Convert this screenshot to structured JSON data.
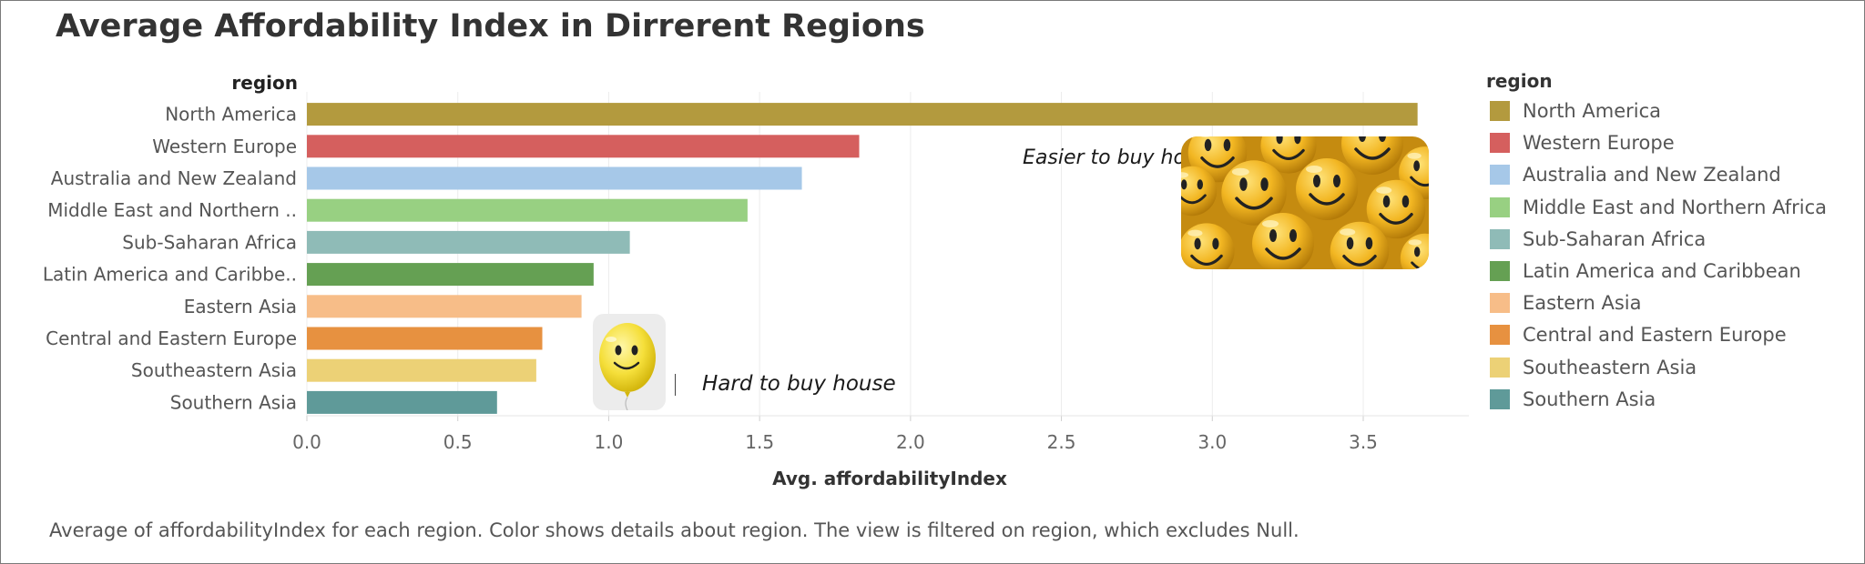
{
  "title": "Average Affordability Index in Dirrerent Regions",
  "caption": "Average of affordabilityIndex for each region.  Color shows details about region. The view is filtered on region, which excludes Null.",
  "annotations": {
    "easier": "Easier to buy house",
    "hard": "Hard to buy house",
    "smileys_icon": "smiley-faces-image",
    "balloon_icon": "smiley-balloon-image"
  },
  "legend": {
    "title": "region",
    "placement": "right",
    "items": [
      {
        "label": "North America",
        "color": "#b39a3e"
      },
      {
        "label": "Western Europe",
        "color": "#d55f5e"
      },
      {
        "label": "Australia and New Zealand",
        "color": "#a6c8e8"
      },
      {
        "label": "Middle East and Northern Africa",
        "color": "#98d082"
      },
      {
        "label": "Sub-Saharan Africa",
        "color": "#8fbbb7"
      },
      {
        "label": "Latin America and Caribbean",
        "color": "#65a053"
      },
      {
        "label": "Eastern Asia",
        "color": "#f7bd88"
      },
      {
        "label": "Central and Eastern Europe",
        "color": "#e79140"
      },
      {
        "label": "Southeastern Asia",
        "color": "#ecd176"
      },
      {
        "label": "Southern Asia",
        "color": "#5f9a99"
      }
    ]
  },
  "chart_data": {
    "type": "bar",
    "orientation": "horizontal",
    "ylabel": "region",
    "xlabel": "Avg. affordabilityIndex",
    "xlim": [
      0,
      3.85
    ],
    "xticks": [
      "0.0",
      "0.5",
      "1.0",
      "1.5",
      "2.0",
      "2.5",
      "3.0",
      "3.5"
    ],
    "grid": true,
    "categories": [
      "North America",
      "Western Europe",
      "Australia and New Zealand",
      "Middle East and Northern ..",
      "Sub-Saharan Africa",
      "Latin America and Caribbe..",
      "Eastern Asia",
      "Central and Eastern Europe",
      "Southeastern Asia",
      "Southern Asia"
    ],
    "values": [
      3.68,
      1.83,
      1.64,
      1.46,
      1.07,
      0.95,
      0.91,
      0.78,
      0.76,
      0.63
    ],
    "colors": [
      "#b39a3e",
      "#d55f5e",
      "#a6c8e8",
      "#98d082",
      "#8fbbb7",
      "#65a053",
      "#f7bd88",
      "#e79140",
      "#ecd176",
      "#5f9a99"
    ]
  }
}
